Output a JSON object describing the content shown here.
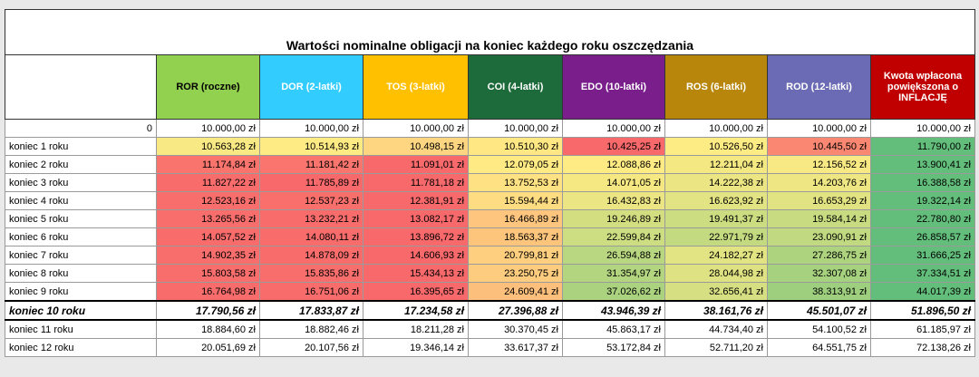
{
  "title": "Wartości nominalne obligacji na koniec każdego roku oszczędzania",
  "columns": [
    "ROR (roczne)",
    "DOR (2-latki)",
    "TOS (3-latki)",
    "COI (4-latki)",
    "EDO (10-latki)",
    "ROS (6-latki)",
    "ROD (12-latki)",
    "Kwota wpłacona powiększona o INFLACJĘ"
  ],
  "column_colors": [
    "#92d050",
    "#33ccff",
    "#ffc000",
    "#1d6b3a",
    "#7a1e8c",
    "#b8860b",
    "#6b6bb5",
    "#c00000"
  ],
  "rows": [
    {
      "label": "0",
      "cells": [
        "10.000,00 zł",
        "10.000,00 zł",
        "10.000,00 zł",
        "10.000,00 zł",
        "10.000,00 zł",
        "10.000,00 zł",
        "10.000,00 zł",
        "10.000,00 zł"
      ]
    },
    {
      "label": "koniec 1 roku",
      "cells": [
        "10.563,28 zł",
        "10.514,93 zł",
        "10.498,15 zł",
        "10.510,30 zł",
        "10.425,25 zł",
        "10.526,50 zł",
        "10.445,50 zł",
        "11.790,00 zł"
      ]
    },
    {
      "label": "koniec 2 roku",
      "cells": [
        "11.174,84 zł",
        "11.181,42 zł",
        "11.091,01 zł",
        "12.079,05 zł",
        "12.088,86 zł",
        "12.211,04 zł",
        "12.156,52 zł",
        "13.900,41 zł"
      ]
    },
    {
      "label": "koniec 3 roku",
      "cells": [
        "11.827,22 zł",
        "11.785,89 zł",
        "11.781,18 zł",
        "13.752,53 zł",
        "14.071,05 zł",
        "14.222,38 zł",
        "14.203,76 zł",
        "16.388,58 zł"
      ]
    },
    {
      "label": "koniec 4 roku",
      "cells": [
        "12.523,16 zł",
        "12.537,23 zł",
        "12.381,91 zł",
        "15.594,44 zł",
        "16.432,83 zł",
        "16.623,92 zł",
        "16.653,29 zł",
        "19.322,14 zł"
      ]
    },
    {
      "label": "koniec 5 roku",
      "cells": [
        "13.265,56 zł",
        "13.232,21 zł",
        "13.082,17 zł",
        "16.466,89 zł",
        "19.246,89 zł",
        "19.491,37 zł",
        "19.584,14 zł",
        "22.780,80 zł"
      ]
    },
    {
      "label": "koniec 6 roku",
      "cells": [
        "14.057,52 zł",
        "14.080,11 zł",
        "13.896,72 zł",
        "18.563,37 zł",
        "22.599,84 zł",
        "22.971,79 zł",
        "23.090,91 zł",
        "26.858,57 zł"
      ]
    },
    {
      "label": "koniec 7 roku",
      "cells": [
        "14.902,35 zł",
        "14.878,09 zł",
        "14.606,93 zł",
        "20.799,81 zł",
        "26.594,88 zł",
        "24.182,27 zł",
        "27.286,75 zł",
        "31.666,25 zł"
      ]
    },
    {
      "label": "koniec 8 roku",
      "cells": [
        "15.803,58 zł",
        "15.835,86 zł",
        "15.434,13 zł",
        "23.250,75 zł",
        "31.354,97 zł",
        "28.044,98 zł",
        "32.307,08 zł",
        "37.334,51 zł"
      ]
    },
    {
      "label": "koniec 9 roku",
      "cells": [
        "16.764,98 zł",
        "16.751,06 zł",
        "16.395,65 zł",
        "24.609,41 zł",
        "37.026,62 zł",
        "32.656,41 zł",
        "38.313,91 zł",
        "44.017,39 zł"
      ]
    },
    {
      "label": "koniec 10 roku",
      "cells": [
        "17.790,56 zł",
        "17.833,87 zł",
        "17.234,58 zł",
        "27.396,88 zł",
        "43.946,39 zł",
        "38.161,76 zł",
        "45.501,07 zł",
        "51.896,50 zł"
      ]
    },
    {
      "label": "koniec 11 roku",
      "cells": [
        "18.884,60 zł",
        "18.882,46 zł",
        "18.211,28 zł",
        "30.370,45 zł",
        "45.863,17 zł",
        "44.734,40 zł",
        "54.100,52 zł",
        "61.185,97 zł"
      ]
    },
    {
      "label": "koniec 12 roku",
      "cells": [
        "20.051,69 zł",
        "20.107,56 zł",
        "19.346,14 zł",
        "33.617,37 zł",
        "53.172,84 zł",
        "52.711,20 zł",
        "64.551,75 zł",
        "72.138,26 zł"
      ]
    }
  ]
}
